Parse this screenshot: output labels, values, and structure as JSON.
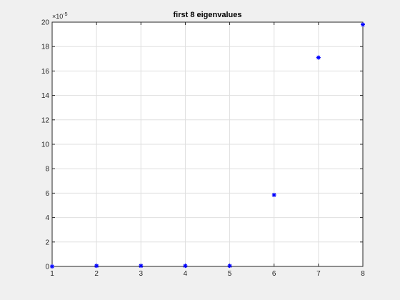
{
  "chart_data": {
    "type": "scatter",
    "title": "first 8 eigenvalues",
    "xlabel": "",
    "ylabel": "",
    "xlim": [
      1,
      8
    ],
    "ylim": [
      0,
      20
    ],
    "x_ticks": [
      1,
      2,
      3,
      4,
      5,
      6,
      7,
      8
    ],
    "y_ticks": [
      0,
      2,
      4,
      6,
      8,
      10,
      12,
      14,
      16,
      18,
      20
    ],
    "y_multiplier_base": "×10",
    "y_multiplier_exponent": "-5",
    "grid": true,
    "marker": "asterisk",
    "marker_color": "#0000ff",
    "x": [
      1,
      2,
      3,
      4,
      5,
      6,
      7,
      8
    ],
    "y": [
      0,
      0.05,
      0.05,
      0.05,
      0.05,
      5.85,
      17.1,
      19.8
    ]
  },
  "colors": {
    "figure_background": "#f0f0f0",
    "axes_background": "#ffffff",
    "grid": "#dfdfdf",
    "axis": "#262626"
  }
}
